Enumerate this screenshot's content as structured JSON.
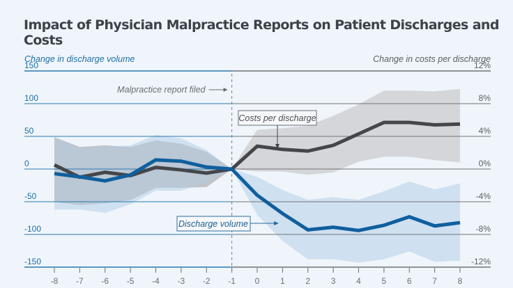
{
  "chart_data": {
    "type": "line",
    "title": "Impact of Physician Malpractice Reports on Patient Discharges and Costs",
    "xlabel": "",
    "x": [
      -8,
      -7,
      -6,
      -5,
      -4,
      -3,
      -2,
      -1,
      0,
      1,
      2,
      3,
      4,
      5,
      6,
      7,
      8
    ],
    "xlim": [
      -8,
      8
    ],
    "grid": true,
    "left_axis": {
      "label": "Change in discharge volume",
      "ylim": [
        -150,
        150
      ],
      "ticks": [
        150,
        100,
        50,
        0,
        -50,
        -100,
        -150
      ],
      "tick_labels": [
        "150",
        "100",
        "50",
        "0",
        "-50",
        "-100",
        "-150"
      ],
      "color": "#1f6fa6"
    },
    "right_axis": {
      "label": "Change in costs per discharge",
      "ylim": [
        -12,
        12
      ],
      "ticks": [
        12,
        8,
        4,
        0,
        -4,
        -8,
        -12
      ],
      "tick_labels": [
        "12%",
        "8%",
        "4%",
        "0%",
        "-4%",
        "-8%",
        "-12%"
      ],
      "color": "#5a5e63"
    },
    "series": [
      {
        "name": "Discharge volume",
        "axis": "left",
        "color": "#0f5f9e",
        "band_color": "#c9dced",
        "values": [
          -7,
          -12,
          -18,
          -9,
          14,
          12,
          3,
          0,
          -40,
          -68,
          -93,
          -89,
          -94,
          -86,
          -73,
          -87,
          -82
        ],
        "ci_low": [
          -62,
          -62,
          -67,
          -54,
          -33,
          -33,
          -20,
          0,
          -70,
          -110,
          -138,
          -138,
          -143,
          -138,
          -126,
          -142,
          -140
        ],
        "ci_high": [
          49,
          33,
          34,
          36,
          52,
          47,
          29,
          0,
          -12,
          -32,
          -47,
          -43,
          -47,
          -34,
          -19,
          -31,
          -22
        ]
      },
      {
        "name": "Costs per discharge",
        "axis": "right",
        "color": "#444649",
        "band_color": "#d2d4d7",
        "values": [
          0.5,
          -1.0,
          -0.4,
          -0.8,
          0.2,
          -0.1,
          -0.5,
          0.0,
          2.8,
          2.4,
          2.2,
          2.9,
          4.3,
          5.7,
          5.7,
          5.4,
          5.5
        ],
        "ci_low": [
          -4.0,
          -4.4,
          -4.2,
          -3.8,
          -2.3,
          -2.3,
          -2.2,
          0.0,
          -0.3,
          -0.3,
          -0.7,
          -0.4,
          0.9,
          1.5,
          1.5,
          1.1,
          0.8
        ],
        "ci_high": [
          3.9,
          2.7,
          2.9,
          2.7,
          3.5,
          3.1,
          2.1,
          0.0,
          4.8,
          5.0,
          5.3,
          6.5,
          7.9,
          9.6,
          9.6,
          9.5,
          9.8
        ]
      }
    ],
    "event_marker": {
      "x": -1,
      "label": "Malpractice report filed"
    },
    "annotations": [
      {
        "text": "Costs per discharge",
        "series": "Costs per discharge"
      },
      {
        "text": "Discharge volume",
        "series": "Discharge volume"
      }
    ]
  }
}
